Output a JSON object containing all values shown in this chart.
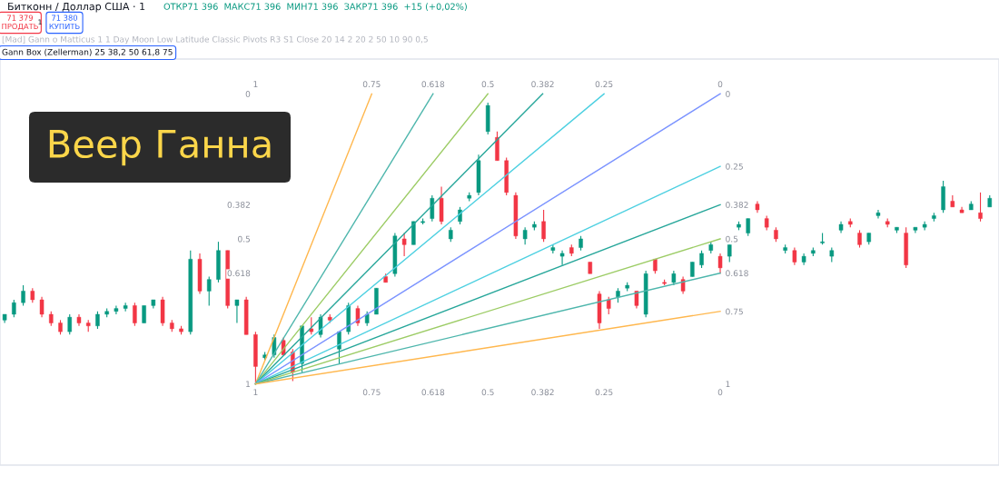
{
  "chart_data": {
    "type": "candlestick",
    "title": "Веер Ганна",
    "annotations": [
      "Битконн / Доллар США · 1",
      "ОТКР71 396  МАКС71 396  МИН71 396  ЗАКР71 396  +15 (+0,02%)",
      "71 379\nПРОДАТЬ",
      "1",
      "71 380\nКУПИТЬ",
      "[Mad] Gann o Matticus 1 1 Day Moon Low Latitude Classic Pivots R3 S1 Close 20 14 2 20 2 50 10 90 0,5",
      "Gann Box (Zellerman) 25 38,2 50 61,8 75"
    ],
    "colors": [
      "#089981",
      "#089981",
      "#089981",
      "#f23645",
      "#f23645",
      "#f23645",
      "#f23645",
      "#089981",
      "#f23645",
      "#f23645",
      "#089981",
      "#089981",
      "#089981",
      "#089981",
      "#f23645",
      "#089981",
      "#089981",
      "#f23645",
      "#f23645",
      "#f23645",
      "#089981",
      "#f23645",
      "#089981",
      "#089981",
      "#f23645",
      "#089981",
      "#f23645",
      "#f23645",
      "#089981",
      "#089981",
      "#f23645",
      "#f23645",
      "#089981",
      "#f23645",
      "#089981",
      "#f23645",
      "#089981",
      "#089981",
      "#f23645",
      "#089981",
      "#089981",
      "#f23645",
      "#089981",
      "#f23645",
      "#089981",
      "#089981",
      "#089981",
      "#f23645",
      "#089981",
      "#089981",
      "#089981",
      "#089981",
      "#089981",
      "#f23645",
      "#f23645",
      "#f23645",
      "#089981",
      "#089981",
      "#f23645",
      "#089981",
      "#089981",
      "#f23645",
      "#089981",
      "#f23645",
      "#f23645",
      "#f23645",
      "#089981",
      "#089981",
      "#f23645",
      "#089981",
      "#f23645",
      "#f23645",
      "#089981",
      "#f23645",
      "#089981",
      "#089981",
      "#089981",
      "#f23645",
      "#089981",
      "#089981",
      "#089981",
      "#f23645",
      "#f23645",
      "#f23645",
      "#089981",
      "#f23645",
      "#089981",
      "#089981",
      "#089981",
      "#089981",
      "#089981",
      "#f23645",
      "#f23645",
      "#089981",
      "#089981",
      "#f23645",
      "#089981",
      "#f23645",
      "#089981",
      "#089981",
      "#089981",
      "#089981",
      "#f23645",
      "#f23645",
      "#089981",
      "#f23645",
      "#089981"
    ],
    "x": [
      1.54,
      1.52,
      1.5,
      1.48,
      1.46,
      1.44,
      1.42,
      1.4,
      1.38,
      1.36,
      1.34,
      1.32,
      1.3,
      1.28,
      1.26,
      1.24,
      1.22,
      1.2,
      1.18,
      1.16,
      1.14,
      1.12,
      1.1,
      1.08,
      1.06,
      1.04,
      1.02,
      1.0,
      0.98,
      0.96,
      0.94,
      0.92,
      0.9,
      0.88,
      0.86,
      0.84,
      0.82,
      0.8,
      0.78,
      0.76,
      0.74,
      0.72,
      0.7,
      0.68,
      0.66,
      0.64,
      0.62,
      0.6,
      0.58,
      0.56,
      0.54,
      0.52,
      0.5,
      0.48,
      0.46,
      0.44,
      0.42,
      0.4,
      0.38,
      0.36,
      0.34,
      0.32,
      0.3,
      0.28,
      0.26,
      0.24,
      0.22,
      0.2,
      0.18,
      0.16,
      0.14,
      0.12,
      0.1,
      0.08,
      0.06,
      0.04,
      0.02,
      0.0,
      -0.02,
      -0.04,
      -0.06,
      -0.08,
      -0.1,
      -0.12,
      -0.14,
      -0.16,
      -0.18,
      -0.2,
      -0.22,
      -0.24,
      -0.26,
      -0.28,
      -0.3,
      -0.32,
      -0.34,
      -0.36,
      -0.38,
      -0.4,
      -0.42,
      -0.44,
      -0.46,
      -0.48,
      -0.5,
      -0.52,
      -0.54,
      -0.56,
      -0.58
    ],
    "ohlc": [
      [
        0.78,
        0.79,
        0.76,
        0.76
      ],
      [
        0.76,
        0.77,
        0.71,
        0.72
      ],
      [
        0.72,
        0.73,
        0.66,
        0.68
      ],
      [
        0.68,
        0.72,
        0.67,
        0.71
      ],
      [
        0.71,
        0.77,
        0.7,
        0.76
      ],
      [
        0.76,
        0.8,
        0.75,
        0.79
      ],
      [
        0.79,
        0.83,
        0.78,
        0.82
      ],
      [
        0.82,
        0.83,
        0.76,
        0.77
      ],
      [
        0.77,
        0.8,
        0.76,
        0.79
      ],
      [
        0.79,
        0.82,
        0.78,
        0.8
      ],
      [
        0.8,
        0.81,
        0.75,
        0.76
      ],
      [
        0.76,
        0.77,
        0.74,
        0.75
      ],
      [
        0.75,
        0.76,
        0.73,
        0.74
      ],
      [
        0.74,
        0.75,
        0.72,
        0.73
      ],
      [
        0.73,
        0.8,
        0.72,
        0.79
      ],
      [
        0.79,
        0.79,
        0.73,
        0.73
      ],
      [
        0.73,
        0.74,
        0.71,
        0.71
      ],
      [
        0.71,
        0.8,
        0.7,
        0.79
      ],
      [
        0.79,
        0.82,
        0.78,
        0.81
      ],
      [
        0.81,
        0.83,
        0.8,
        0.82
      ],
      [
        0.82,
        0.83,
        0.54,
        0.57
      ],
      [
        0.57,
        0.69,
        0.55,
        0.68
      ],
      [
        0.68,
        0.73,
        0.63,
        0.64
      ],
      [
        0.64,
        0.65,
        0.51,
        0.54
      ],
      [
        0.54,
        0.74,
        0.54,
        0.73
      ],
      [
        0.73,
        0.79,
        0.71,
        0.71
      ],
      [
        0.71,
        0.83,
        0.7,
        0.83
      ],
      [
        0.83,
        1.0,
        0.82,
        0.94
      ],
      [
        0.91,
        0.92,
        0.89,
        0.9
      ],
      [
        0.9,
        0.91,
        0.83,
        0.84
      ],
      [
        0.85,
        0.9,
        0.84,
        0.9
      ],
      [
        0.89,
        0.99,
        0.88,
        0.96
      ],
      [
        0.93,
        0.96,
        0.8,
        0.8
      ],
      [
        0.81,
        0.83,
        0.77,
        0.82
      ],
      [
        0.83,
        0.84,
        0.76,
        0.77
      ],
      [
        0.77,
        0.79,
        0.76,
        0.78
      ],
      [
        0.88,
        0.93,
        0.82,
        0.82
      ],
      [
        0.82,
        0.83,
        0.72,
        0.73
      ],
      [
        0.74,
        0.8,
        0.73,
        0.79
      ],
      [
        0.79,
        0.8,
        0.75,
        0.76
      ],
      [
        0.76,
        0.76,
        0.67,
        0.67
      ],
      [
        0.63,
        0.65,
        0.62,
        0.65
      ],
      [
        0.62,
        0.63,
        0.48,
        0.49
      ],
      [
        0.5,
        0.56,
        0.48,
        0.52
      ],
      [
        0.52,
        0.52,
        0.44,
        0.44
      ],
      [
        0.44,
        0.45,
        0.43,
        0.44
      ],
      [
        0.43,
        0.44,
        0.35,
        0.36
      ],
      [
        0.36,
        0.45,
        0.32,
        0.44
      ],
      [
        0.5,
        0.51,
        0.46,
        0.47
      ],
      [
        0.44,
        0.45,
        0.39,
        0.4
      ],
      [
        0.36,
        0.37,
        0.34,
        0.35
      ],
      [
        0.34,
        0.35,
        0.21,
        0.23
      ],
      [
        0.13,
        0.14,
        0.03,
        0.04
      ],
      [
        0.15,
        0.23,
        0.13,
        0.23
      ],
      [
        0.23,
        0.35,
        0.22,
        0.34
      ],
      [
        0.35,
        0.5,
        0.34,
        0.49
      ],
      [
        0.5,
        0.52,
        0.46,
        0.47
      ],
      [
        0.46,
        0.47,
        0.44,
        0.45
      ],
      [
        0.44,
        0.51,
        0.4,
        0.5
      ],
      [
        0.54,
        0.55,
        0.52,
        0.53
      ],
      [
        0.56,
        0.59,
        0.54,
        0.55
      ],
      [
        0.53,
        0.56,
        0.52,
        0.55
      ],
      [
        0.53,
        0.54,
        0.49,
        0.5
      ],
      [
        0.58,
        0.62,
        0.58,
        0.62
      ],
      [
        0.69,
        0.81,
        0.68,
        0.79
      ],
      [
        0.71,
        0.76,
        0.7,
        0.74
      ],
      [
        0.7,
        0.72,
        0.67,
        0.68
      ],
      [
        0.67,
        0.68,
        0.65,
        0.66
      ],
      [
        0.68,
        0.74,
        0.68,
        0.73
      ],
      [
        0.76,
        0.77,
        0.61,
        0.62
      ],
      [
        0.57,
        0.62,
        0.57,
        0.61
      ],
      [
        0.65,
        0.66,
        0.64,
        0.65
      ],
      [
        0.65,
        0.66,
        0.61,
        0.62
      ],
      [
        0.64,
        0.69,
        0.63,
        0.68
      ],
      [
        0.63,
        0.63,
        0.58,
        0.58
      ],
      [
        0.59,
        0.6,
        0.54,
        0.55
      ],
      [
        0.54,
        0.55,
        0.51,
        0.52
      ],
      [
        0.56,
        0.62,
        0.55,
        0.6
      ],
      [
        0.56,
        0.58,
        0.52,
        0.52
      ],
      [
        0.46,
        0.47,
        0.44,
        0.45
      ],
      [
        0.48,
        0.49,
        0.43,
        0.43
      ],
      [
        0.38,
        0.41,
        0.37,
        0.4
      ],
      [
        0.43,
        0.47,
        0.42,
        0.46
      ],
      [
        0.47,
        0.51,
        0.46,
        0.5
      ],
      [
        0.54,
        0.55,
        0.52,
        0.53
      ],
      [
        0.54,
        0.59,
        0.53,
        0.58
      ],
      [
        0.58,
        0.59,
        0.55,
        0.56
      ],
      [
        0.55,
        0.56,
        0.53,
        0.54
      ],
      [
        0.51,
        0.52,
        0.48,
        0.51
      ],
      [
        0.56,
        0.58,
        0.53,
        0.54
      ],
      [
        0.47,
        0.48,
        0.44,
        0.45
      ],
      [
        0.44,
        0.46,
        0.43,
        0.45
      ],
      [
        0.48,
        0.53,
        0.47,
        0.52
      ],
      [
        0.51,
        0.52,
        0.48,
        0.48
      ],
      [
        0.42,
        0.43,
        0.4,
        0.41
      ],
      [
        0.44,
        0.46,
        0.43,
        0.45
      ],
      [
        0.47,
        0.48,
        0.46,
        0.46
      ],
      [
        0.48,
        0.6,
        0.46,
        0.59
      ],
      [
        0.47,
        0.48,
        0.46,
        0.46
      ],
      [
        0.46,
        0.47,
        0.44,
        0.45
      ],
      [
        0.43,
        0.44,
        0.41,
        0.42
      ],
      [
        0.4,
        0.41,
        0.3,
        0.32
      ],
      [
        0.37,
        0.39,
        0.35,
        0.39
      ],
      [
        0.4,
        0.41,
        0.39,
        0.41
      ],
      [
        0.4,
        0.4,
        0.37,
        0.38
      ],
      [
        0.41,
        0.44,
        0.34,
        0.43
      ],
      [
        0.39,
        0.39,
        0.35,
        0.36
      ]
    ],
    "series": [
      {
        "type": "line",
        "color": "#ffb74d",
        "x": [
          1,
          0.75
        ],
        "values": [
          1,
          0
        ]
      },
      {
        "type": "line",
        "color": "#4db6ac",
        "x": [
          1,
          0.618
        ],
        "values": [
          1,
          0
        ]
      },
      {
        "type": "line",
        "color": "#9ccc65",
        "x": [
          1,
          0.5
        ],
        "values": [
          1,
          0
        ]
      },
      {
        "type": "line",
        "color": "#26a69a",
        "x": [
          1,
          0.382
        ],
        "values": [
          1,
          0
        ]
      },
      {
        "type": "line",
        "color": "#4dd0e1",
        "x": [
          1,
          0.25
        ],
        "values": [
          1,
          0
        ]
      },
      {
        "type": "line",
        "color": "#7b93ff",
        "x": [
          1,
          0
        ],
        "values": [
          1,
          0
        ]
      },
      {
        "type": "line",
        "color": "#4dd0e1",
        "x": [
          1,
          0
        ],
        "values": [
          1,
          0.25
        ]
      },
      {
        "type": "line",
        "color": "#26a69a",
        "x": [
          1,
          0
        ],
        "values": [
          1,
          0.382
        ]
      },
      {
        "type": "line",
        "color": "#9ccc65",
        "x": [
          1,
          0
        ],
        "values": [
          1,
          0.5
        ]
      },
      {
        "type": "line",
        "color": "#4db6ac",
        "x": [
          1,
          0
        ],
        "values": [
          1,
          0.618
        ]
      },
      {
        "type": "line",
        "color": "#ffb74d",
        "x": [
          1,
          0
        ],
        "values": [
          1,
          0.75
        ]
      }
    ],
    "xlim": [
      1.55,
      -0.6
    ],
    "xticks": [
      1,
      0.75,
      0.618,
      0.5,
      0.382,
      0.25,
      0
    ],
    "x2lim": [
      1.55,
      -0.6
    ],
    "x2ticks": [
      1,
      0.75,
      0.618,
      0.5,
      0.382,
      0.25,
      0
    ],
    "ylim": [
      1.28,
      -0.12
    ],
    "yticks": [
      0,
      0.382,
      0.5,
      0.618,
      1
    ],
    "y2lim": [
      1.28,
      -0.12
    ],
    "y2ticks": [
      0,
      0.25,
      0.382,
      0.5,
      0.618,
      0.75,
      1
    ],
    "grid": false,
    "marker": "none",
    "line_style": "solid"
  }
}
